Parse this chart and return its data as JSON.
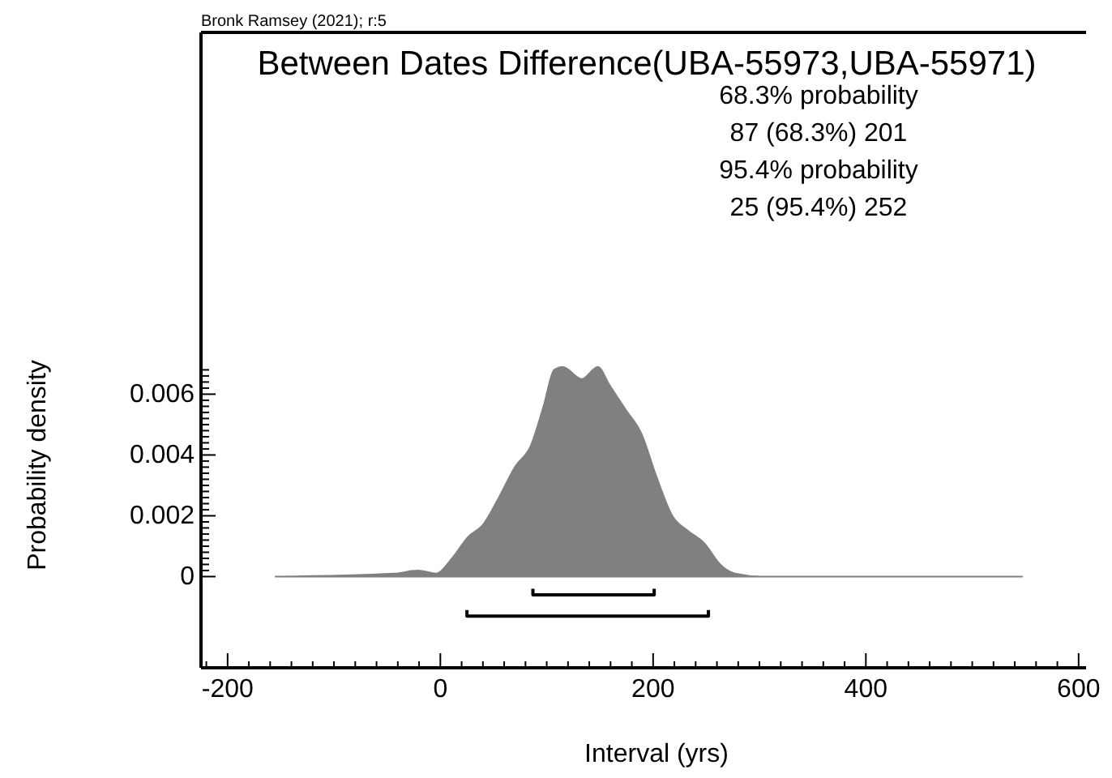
{
  "chart_data": {
    "type": "area",
    "title": "Between Dates Difference(UBA-55973,UBA-55971)",
    "xlabel": "Interval (yrs)",
    "ylabel": "Probability density",
    "annotations": [
      "Bronk Ramsey (2021); r:5",
      "68.3% probability",
      "87 (68.3%) 201",
      "95.4% probability",
      "25 (95.4%) 252"
    ],
    "x": [
      -155,
      -43,
      -21,
      -4,
      11,
      26,
      40,
      55,
      70,
      85,
      97,
      107,
      115,
      133,
      148,
      159,
      174,
      189,
      203,
      218,
      233,
      248,
      263,
      277,
      302,
      547
    ],
    "series": [
      {
        "color": "#808080",
        "values": [
          0,
          0.0001,
          0.0002,
          0.0001,
          0.0006,
          0.0013,
          0.0017,
          0.0026,
          0.0036,
          0.0043,
          0.0056,
          0.0068,
          0.0069,
          0.0065,
          0.0069,
          0.0063,
          0.0055,
          0.0047,
          0.0033,
          0.002,
          0.0015,
          0.0011,
          0.0004,
          0.0001,
          0,
          0
        ]
      },
      {
        "type": "line",
        "color": "#000000",
        "x": [
          87,
          87,
          201,
          201
        ],
        "values": [
          -0.0004,
          -0.0006,
          -0.0006,
          -0.0004
        ]
      },
      {
        "type": "line",
        "color": "#000000",
        "x": [
          25,
          25,
          252,
          252
        ],
        "values": [
          -0.0011,
          -0.0013,
          -0.0013,
          -0.0011
        ]
      }
    ],
    "xlim": [
      -225,
      607
    ],
    "ylim": [
      -0.003,
      0.0179
    ],
    "xticks": [
      -200,
      0,
      200,
      400,
      600,
      {
        "value": -220,
        "label": null
      },
      {
        "value": -180,
        "label": null
      },
      {
        "value": -160,
        "label": null
      },
      {
        "value": -140,
        "label": null
      },
      {
        "value": -120,
        "label": null
      },
      {
        "value": -100,
        "label": null
      },
      {
        "value": -80,
        "label": null
      },
      {
        "value": -60,
        "label": null
      },
      {
        "value": -40,
        "label": null
      },
      {
        "value": -20,
        "label": null
      },
      {
        "value": 20,
        "label": null
      },
      {
        "value": 40,
        "label": null
      },
      {
        "value": 60,
        "label": null
      },
      {
        "value": 80,
        "label": null
      },
      {
        "value": 100,
        "label": null
      },
      {
        "value": 120,
        "label": null
      },
      {
        "value": 140,
        "label": null
      },
      {
        "value": 160,
        "label": null
      },
      {
        "value": 180,
        "label": null
      },
      {
        "value": 220,
        "label": null
      },
      {
        "value": 240,
        "label": null
      },
      {
        "value": 260,
        "label": null
      },
      {
        "value": 280,
        "label": null
      },
      {
        "value": 300,
        "label": null
      },
      {
        "value": 320,
        "label": null
      },
      {
        "value": 340,
        "label": null
      },
      {
        "value": 360,
        "label": null
      },
      {
        "value": 380,
        "label": null
      },
      {
        "value": 420,
        "label": null
      },
      {
        "value": 440,
        "label": null
      },
      {
        "value": 460,
        "label": null
      },
      {
        "value": 480,
        "label": null
      },
      {
        "value": 500,
        "label": null
      },
      {
        "value": 520,
        "label": null
      },
      {
        "value": 540,
        "label": null
      },
      {
        "value": 560,
        "label": null
      },
      {
        "value": 580,
        "label": null
      }
    ],
    "yticks": [
      0,
      0.002,
      0.004,
      0.006,
      {
        "value": 0.0002,
        "label": null
      },
      {
        "value": 0.0004,
        "label": null
      },
      {
        "value": 0.0006,
        "label": null
      },
      {
        "value": 0.0008,
        "label": null
      },
      {
        "value": 0.001,
        "label": null
      },
      {
        "value": 0.0012,
        "label": null
      },
      {
        "value": 0.0014,
        "label": null
      },
      {
        "value": 0.0016,
        "label": null
      },
      {
        "value": 0.0018,
        "label": null
      },
      {
        "value": 0.0022,
        "label": null
      },
      {
        "value": 0.0024,
        "label": null
      },
      {
        "value": 0.0026,
        "label": null
      },
      {
        "value": 0.0028,
        "label": null
      },
      {
        "value": 0.003,
        "label": null
      },
      {
        "value": 0.0032,
        "label": null
      },
      {
        "value": 0.0034,
        "label": null
      },
      {
        "value": 0.0036,
        "label": null
      },
      {
        "value": 0.0038,
        "label": null
      },
      {
        "value": 0.0042,
        "label": null
      },
      {
        "value": 0.0044,
        "label": null
      },
      {
        "value": 0.0046,
        "label": null
      },
      {
        "value": 0.0048,
        "label": null
      },
      {
        "value": 0.005,
        "label": null
      },
      {
        "value": 0.0052,
        "label": null
      },
      {
        "value": 0.0054,
        "label": null
      },
      {
        "value": 0.0056,
        "label": null
      },
      {
        "value": 0.0058,
        "label": null
      },
      {
        "value": 0.0062,
        "label": null
      },
      {
        "value": 0.0064,
        "label": null
      },
      {
        "value": 0.0066,
        "label": null
      },
      {
        "value": 0.0068,
        "label": null
      }
    ],
    "grid": false
  }
}
